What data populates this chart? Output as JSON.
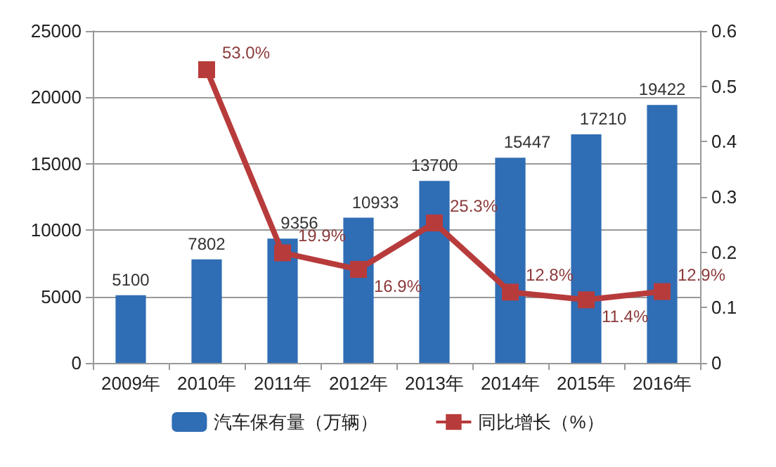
{
  "chart_data": {
    "type": "bar",
    "categories": [
      "2009年",
      "2010年",
      "2011年",
      "2012年",
      "2013年",
      "2014年",
      "2015年",
      "2016年"
    ],
    "series": [
      {
        "name": "汽车保有量（万辆）",
        "color": "#2f6db5",
        "values": [
          5100,
          7802,
          9356,
          10933,
          13700,
          15447,
          17210,
          19422
        ],
        "value_labels": [
          "5100",
          "7802",
          "9356",
          "10933",
          "13700",
          "15447",
          "17210",
          "19422"
        ]
      },
      {
        "name": "同比增长（%）",
        "type": "line",
        "axis": "y2",
        "color": "#b83b3b",
        "marker": "square",
        "values": [
          null,
          0.53,
          0.199,
          0.169,
          0.253,
          0.128,
          0.114,
          0.129
        ],
        "value_labels": [
          null,
          "53.0%",
          "19.9%",
          "16.9%",
          "25.3%",
          "12.8%",
          "11.4%",
          "12.9%"
        ]
      }
    ],
    "ylim": [
      0,
      25000
    ],
    "yticks": [
      0,
      5000,
      10000,
      15000,
      20000,
      25000
    ],
    "y2lim": [
      0,
      0.6
    ],
    "y2ticks": [
      0,
      0.1,
      0.2,
      0.3,
      0.4,
      0.5,
      0.6
    ],
    "grid": "y",
    "legend": "bottom"
  }
}
